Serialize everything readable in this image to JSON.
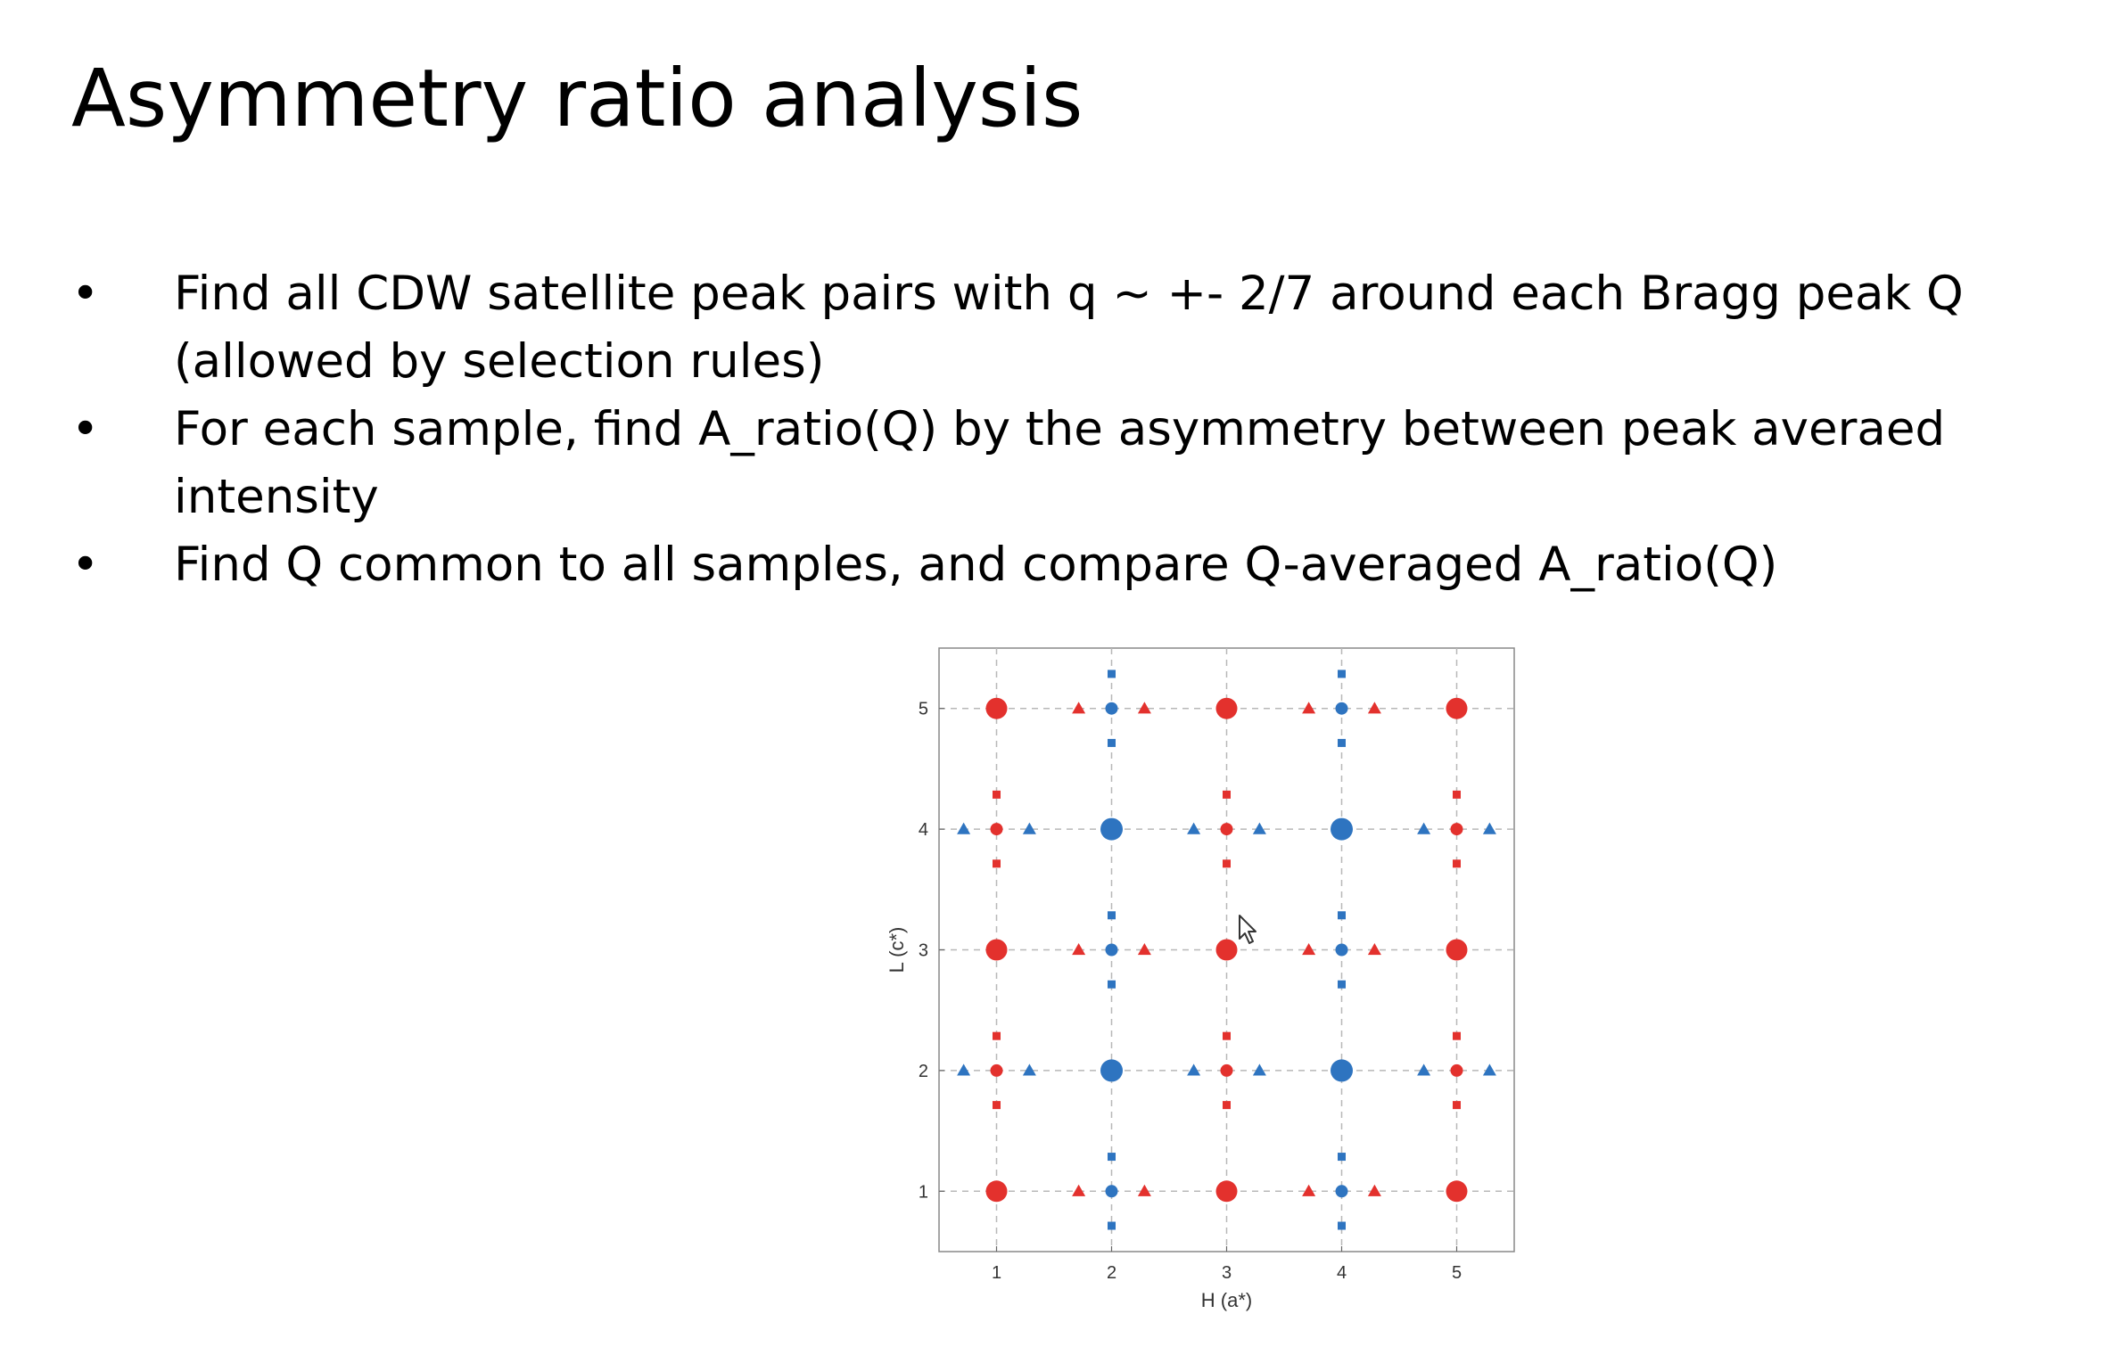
{
  "slide": {
    "title": "Asymmetry ratio analysis",
    "bullets": [
      {
        "line1": "Find all CDW satellite peak pairs with q ~ +- 2/7  around each Bragg peak Q",
        "line2": "(allowed by selection rules)"
      },
      {
        "line1": "For each sample, find A_ratio(Q) by the asymmetry between peak averaed",
        "line2": "intensity"
      },
      {
        "line1": "Find Q common to all samples, and compare Q-averaged  A_ratio(Q)",
        "line2": ""
      }
    ],
    "bullet_symbol": "•"
  },
  "chart_data": {
    "type": "scatter",
    "title": "",
    "xlabel": "H (a*)",
    "ylabel": "L (c*)",
    "xlim": [
      0.5,
      5.5
    ],
    "ylim": [
      0.5,
      5.5
    ],
    "xticks": [
      1,
      2,
      3,
      4,
      5
    ],
    "yticks": [
      1,
      2,
      3,
      4,
      5
    ],
    "grid": true,
    "colors": {
      "red": "#e3312d",
      "blue": "#2e74c0",
      "grid": "#b8b8b8"
    },
    "series": [
      {
        "marker": "circle-large",
        "color": "red",
        "points": [
          [
            1,
            1
          ],
          [
            3,
            1
          ],
          [
            5,
            1
          ],
          [
            1,
            3
          ],
          [
            3,
            3
          ],
          [
            5,
            3
          ],
          [
            1,
            5
          ],
          [
            3,
            5
          ],
          [
            5,
            5
          ]
        ]
      },
      {
        "marker": "circle-large",
        "color": "blue",
        "points": [
          [
            2,
            2
          ],
          [
            4,
            2
          ],
          [
            2,
            4
          ],
          [
            4,
            4
          ]
        ]
      },
      {
        "marker": "circle-small",
        "color": "red",
        "points": [
          [
            1,
            2
          ],
          [
            3,
            2
          ],
          [
            5,
            2
          ],
          [
            1,
            4
          ],
          [
            3,
            4
          ],
          [
            5,
            4
          ]
        ]
      },
      {
        "marker": "circle-small",
        "color": "blue",
        "points": [
          [
            2,
            1
          ],
          [
            4,
            1
          ],
          [
            2,
            3
          ],
          [
            4,
            3
          ],
          [
            2,
            5
          ],
          [
            4,
            5
          ]
        ]
      },
      {
        "marker": "triangle",
        "color": "red",
        "points": [
          [
            1.714,
            1
          ],
          [
            2.286,
            1
          ],
          [
            3.714,
            1
          ],
          [
            4.286,
            1
          ],
          [
            1.714,
            3
          ],
          [
            2.286,
            3
          ],
          [
            3.714,
            3
          ],
          [
            4.286,
            3
          ],
          [
            1.714,
            5
          ],
          [
            2.286,
            5
          ],
          [
            3.714,
            5
          ],
          [
            4.286,
            5
          ]
        ]
      },
      {
        "marker": "triangle",
        "color": "blue",
        "points": [
          [
            0.714,
            2
          ],
          [
            1.286,
            2
          ],
          [
            2.714,
            2
          ],
          [
            3.286,
            2
          ],
          [
            4.714,
            2
          ],
          [
            5.286,
            2
          ],
          [
            0.714,
            4
          ],
          [
            1.286,
            4
          ],
          [
            2.714,
            4
          ],
          [
            3.286,
            4
          ],
          [
            4.714,
            4
          ],
          [
            5.286,
            4
          ]
        ]
      },
      {
        "marker": "square",
        "color": "red",
        "points": [
          [
            1,
            1.714
          ],
          [
            1,
            2.286
          ],
          [
            3,
            1.714
          ],
          [
            3,
            2.286
          ],
          [
            5,
            1.714
          ],
          [
            5,
            2.286
          ],
          [
            1,
            3.714
          ],
          [
            1,
            4.286
          ],
          [
            3,
            3.714
          ],
          [
            3,
            4.286
          ],
          [
            5,
            3.714
          ],
          [
            5,
            4.286
          ]
        ]
      },
      {
        "marker": "square",
        "color": "blue",
        "points": [
          [
            2,
            0.714
          ],
          [
            2,
            1.286
          ],
          [
            4,
            0.714
          ],
          [
            4,
            1.286
          ],
          [
            2,
            2.714
          ],
          [
            2,
            3.286
          ],
          [
            4,
            2.714
          ],
          [
            4,
            3.286
          ],
          [
            2,
            4.714
          ],
          [
            2,
            5.286
          ],
          [
            4,
            4.714
          ],
          [
            4,
            5.286
          ]
        ]
      }
    ]
  }
}
